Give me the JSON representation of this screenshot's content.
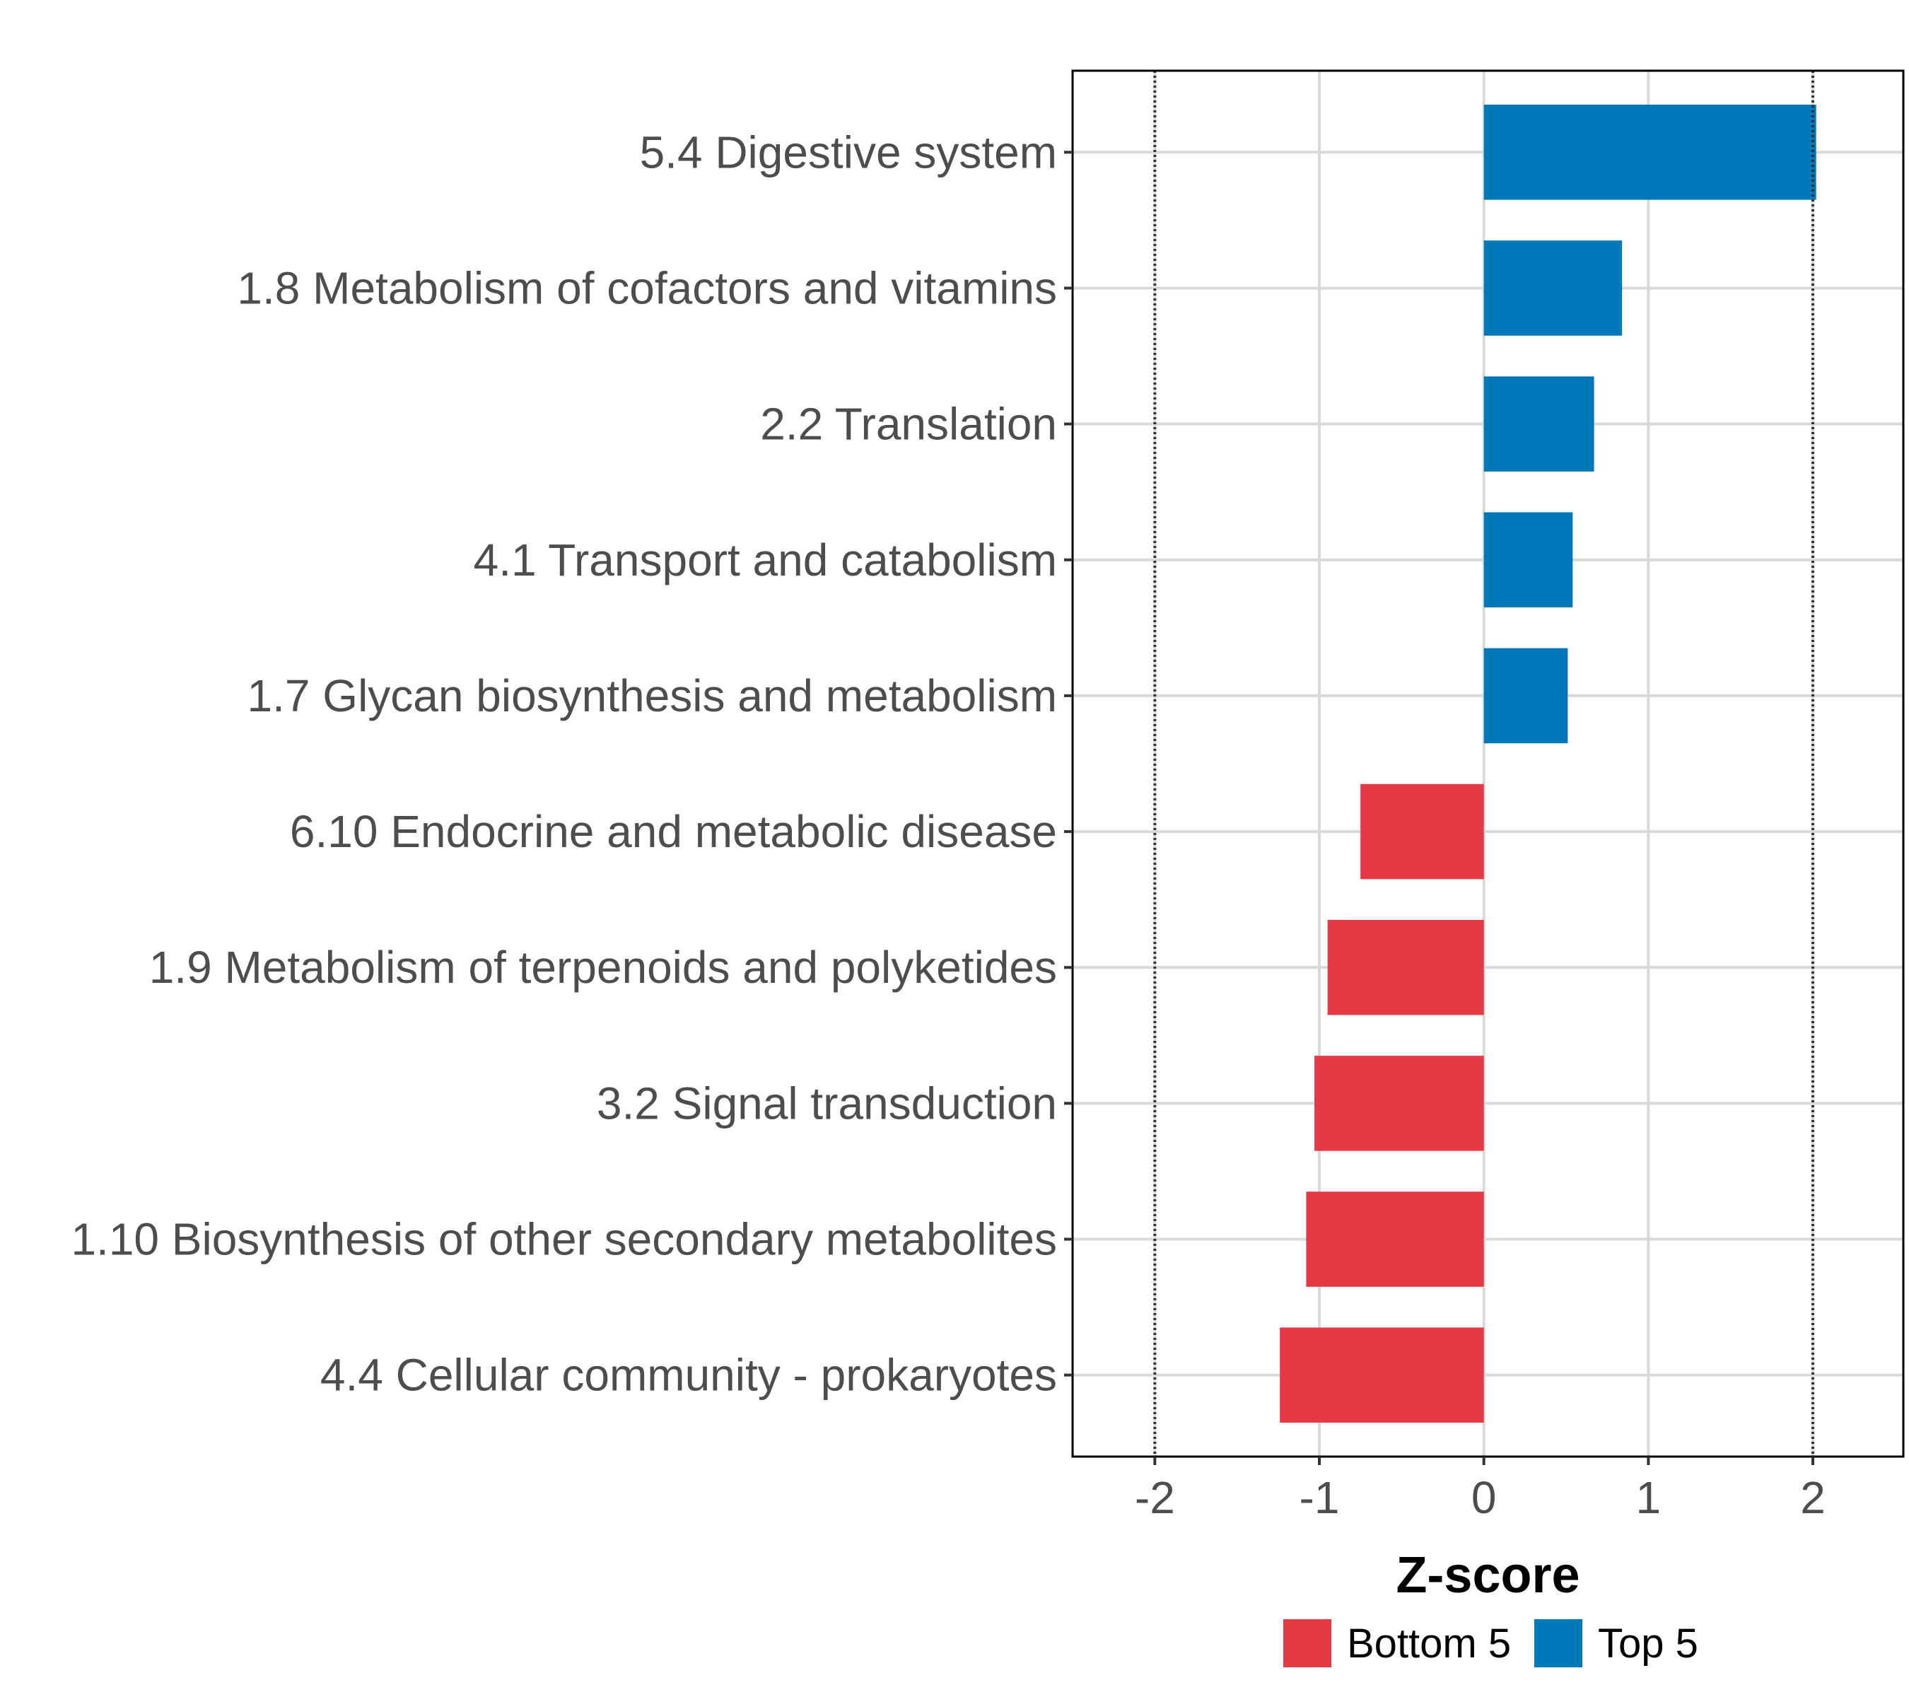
{
  "chart_data": {
    "type": "bar",
    "orientation": "horizontal",
    "xlabel": "Z-score",
    "xlim": [
      -2.5,
      2.55
    ],
    "xticks": [
      -2,
      -1,
      0,
      1,
      2
    ],
    "xtick_labels": [
      "-2",
      "-1",
      "0",
      "1",
      "2"
    ],
    "reference_lines": [
      -2,
      2
    ],
    "categories": [
      "5.4 Digestive system",
      "1.8 Metabolism of cofactors and vitamins",
      "2.2 Translation",
      "4.1 Transport and catabolism",
      "1.7 Glycan biosynthesis and metabolism",
      "6.10 Endocrine and metabolic disease",
      "1.9 Metabolism of terpenoids and polyketides",
      "3.2 Signal transduction",
      "1.10 Biosynthesis of other secondary metabolites",
      "4.4 Cellular community - prokaryotes"
    ],
    "values": [
      2.02,
      0.84,
      0.67,
      0.54,
      0.51,
      -0.75,
      -0.95,
      -1.03,
      -1.08,
      -1.24
    ],
    "groups": [
      "Top 5",
      "Top 5",
      "Top 5",
      "Top 5",
      "Top 5",
      "Bottom 5",
      "Bottom 5",
      "Bottom 5",
      "Bottom 5",
      "Bottom 5"
    ],
    "legend": [
      {
        "name": "Bottom 5",
        "color": "#E63946"
      },
      {
        "name": "Top 5",
        "color": "#0077B6"
      }
    ],
    "legend_position": "bottom",
    "grid": true
  }
}
